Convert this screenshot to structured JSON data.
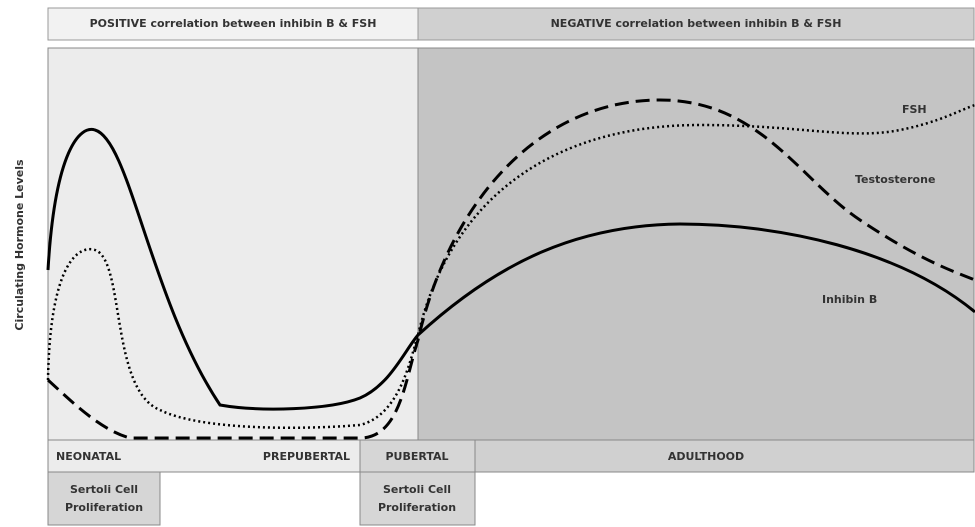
{
  "header": {
    "left": "POSITIVE correlation between inhibin B & FSH",
    "right": "NEGATIVE correlation between inhibin B & FSH"
  },
  "y_axis_label": "Circulating Hormone Levels",
  "curve_labels": {
    "fsh": "FSH",
    "testosterone": "Testosterone",
    "inhibin": "Inhibin B"
  },
  "phases": [
    "NEONATAL",
    "PREPUBERTAL",
    "PUBERTAL",
    "ADULTHOOD"
  ],
  "notes": [
    [
      "Sertoli Cell",
      "Proliferation"
    ],
    [
      "Sertoli Cell",
      "Proliferation"
    ]
  ]
}
